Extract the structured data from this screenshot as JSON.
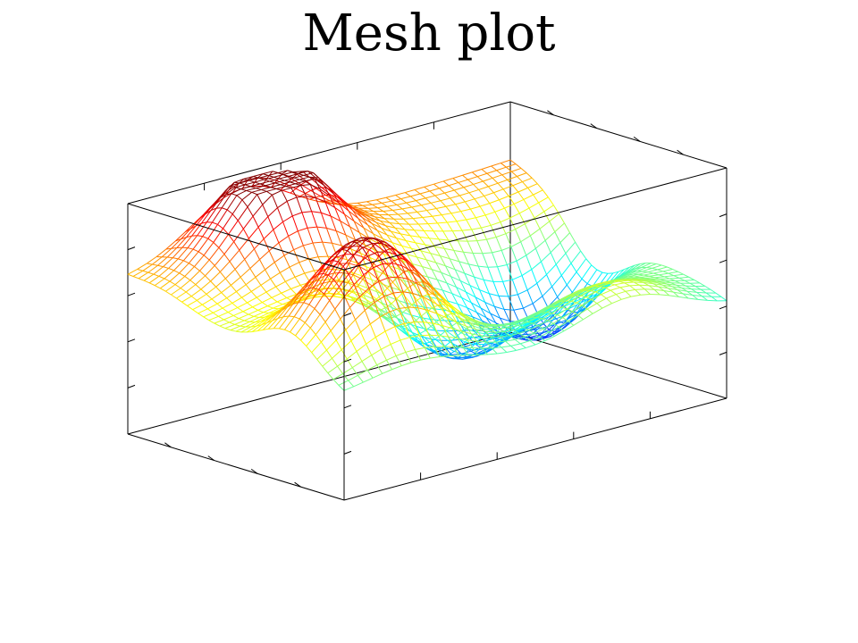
{
  "chart_data": {
    "type": "mesh",
    "title": "Mesh plot",
    "xlabel": "",
    "ylabel": "",
    "zlabel": "",
    "colormap": "jet",
    "grid": false,
    "box": true,
    "legend": "none",
    "x_range": [
      0,
      1
    ],
    "y_range": [
      0,
      1
    ],
    "z_range": [
      -1,
      1
    ],
    "grid_lines": 40,
    "surface": {
      "z_corner_samples": {
        "x0_y0": 0.35,
        "x0_y1": 0.5,
        "x1_y0": -0.1,
        "x1_y1": -0.2
      },
      "peaks": [
        {
          "x": 0.15,
          "y": 0.3,
          "z": 0.9
        },
        {
          "x": 0.75,
          "y": 0.2,
          "z": 0.95
        },
        {
          "x": 0.95,
          "y": 0.75,
          "z": 0.3
        }
      ],
      "troughs": [
        {
          "x": 0.4,
          "y": 0.85,
          "z": -0.85
        },
        {
          "x": 0.55,
          "y": 0.55,
          "z": -0.6
        }
      ]
    }
  }
}
